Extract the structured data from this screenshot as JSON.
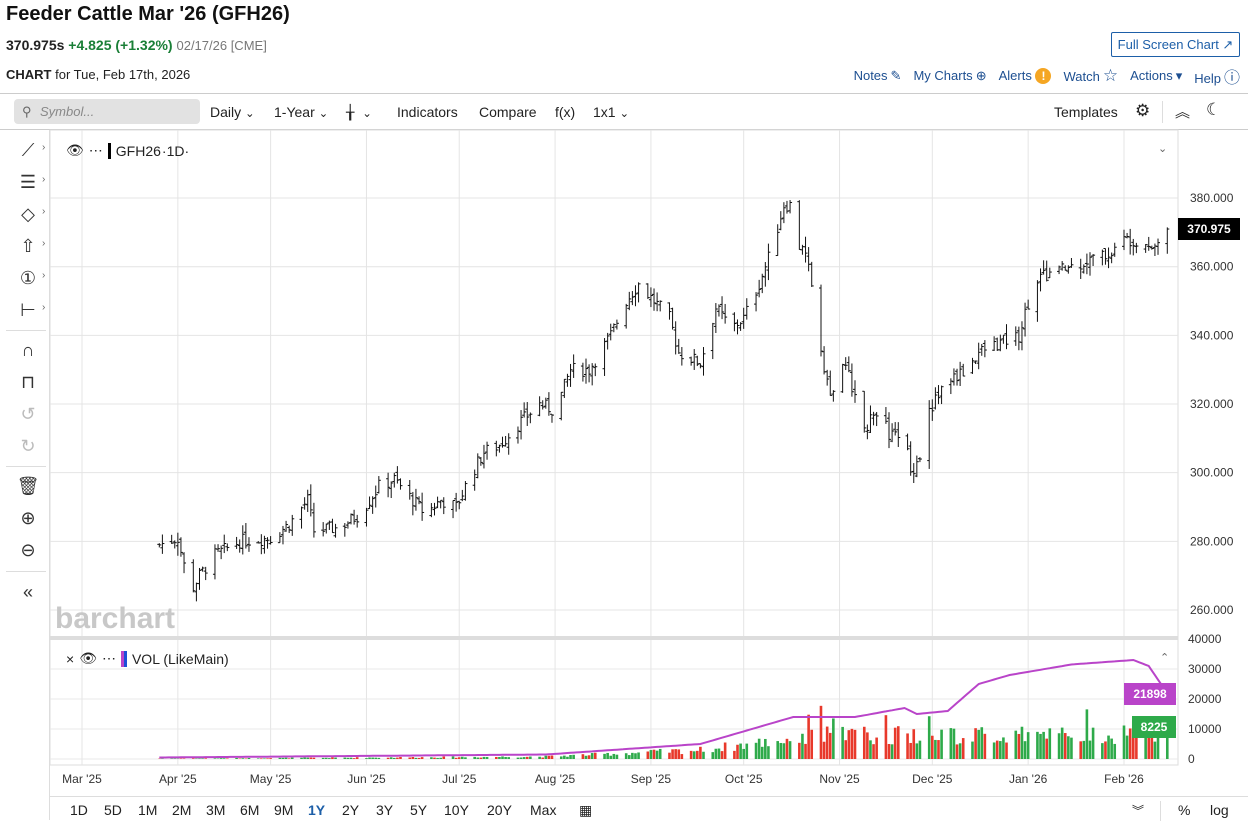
{
  "header": {
    "title": "Feeder Cattle Mar '26 (GFH26)",
    "last": "370.975s",
    "change": "+4.825 (+1.32%)",
    "date": "02/17/26 [CME]",
    "fullscreen": "Full Screen Chart ↗",
    "chart_label": "CHART",
    "chart_for": "for Tue, Feb 17th, 2026"
  },
  "links": {
    "notes": "Notes",
    "mycharts": "My Charts",
    "alerts": "Alerts",
    "watch": "Watch",
    "actions": "Actions",
    "help": "Help"
  },
  "toolbar": {
    "search_placeholder": "Symbol...",
    "interval": "Daily",
    "range": "1-Year",
    "indicators": "Indicators",
    "compare": "Compare",
    "fx": "f(x)",
    "layout": "1x1",
    "templates": "Templates"
  },
  "legend": {
    "symbol": "GFH26",
    "period": "·1D·",
    "vol": "VOL (LikeMain)"
  },
  "watermark": "barchart",
  "bottom": {
    "ranges": [
      "1D",
      "5D",
      "1M",
      "2M",
      "3M",
      "6M",
      "9M",
      "1Y",
      "2Y",
      "3Y",
      "5Y",
      "10Y",
      "20Y",
      "Max"
    ],
    "active": "1Y",
    "pct": "%",
    "log": "log"
  },
  "colors": {
    "up": "#2eaa4a",
    "down": "#e8392b",
    "ma": "#b944c9",
    "link": "#1d4f91"
  },
  "chart_data": {
    "type": "ohlc",
    "x_unit": "days since 2025-03-01",
    "xticks": [
      {
        "label": "Mar '25",
        "day": 0
      },
      {
        "label": "Apr '25",
        "day": 31
      },
      {
        "label": "May '25",
        "day": 61
      },
      {
        "label": "Jun '25",
        "day": 92
      },
      {
        "label": "Jul '25",
        "day": 122
      },
      {
        "label": "Aug '25",
        "day": 153
      },
      {
        "label": "Sep '25",
        "day": 184
      },
      {
        "label": "Oct '25",
        "day": 214
      },
      {
        "label": "Nov '25",
        "day": 245
      },
      {
        "label": "Dec '25",
        "day": 275
      },
      {
        "label": "Jan '26",
        "day": 306
      },
      {
        "label": "Feb '26",
        "day": 337
      }
    ],
    "price_ticks": [
      "260.000",
      "280.000",
      "300.000",
      "320.000",
      "340.000",
      "360.000",
      "380.000"
    ],
    "ylim": [
      254,
      393
    ],
    "last_price": "370.975",
    "close_keypoints": [
      [
        25,
        279
      ],
      [
        31,
        281
      ],
      [
        35,
        265
      ],
      [
        38,
        270
      ],
      [
        43,
        276
      ],
      [
        51,
        280
      ],
      [
        61,
        281
      ],
      [
        67,
        285
      ],
      [
        73,
        292
      ],
      [
        75,
        283
      ],
      [
        83,
        284
      ],
      [
        90,
        288
      ],
      [
        96,
        296
      ],
      [
        101,
        298
      ],
      [
        106,
        293
      ],
      [
        111,
        288
      ],
      [
        116,
        292
      ],
      [
        121,
        290
      ],
      [
        125,
        298
      ],
      [
        130,
        306
      ],
      [
        135,
        308
      ],
      [
        142,
        315
      ],
      [
        148,
        320
      ],
      [
        153,
        318
      ],
      [
        158,
        330
      ],
      [
        164,
        330
      ],
      [
        171,
        340
      ],
      [
        176,
        350
      ],
      [
        180,
        355
      ],
      [
        185,
        350
      ],
      [
        190,
        345
      ],
      [
        193,
        335
      ],
      [
        200,
        332
      ],
      [
        205,
        348
      ],
      [
        210,
        342
      ],
      [
        214,
        345
      ],
      [
        219,
        355
      ],
      [
        223,
        365
      ],
      [
        227,
        378
      ],
      [
        230,
        378
      ],
      [
        232,
        366
      ],
      [
        235,
        360
      ],
      [
        238,
        345
      ],
      [
        239,
        336
      ],
      [
        242,
        322
      ],
      [
        245,
        330
      ],
      [
        248,
        330
      ],
      [
        252,
        312
      ],
      [
        255,
        315
      ],
      [
        258,
        320
      ],
      [
        261,
        310
      ],
      [
        266,
        312
      ],
      [
        268,
        300
      ],
      [
        271,
        305
      ],
      [
        274,
        318
      ],
      [
        279,
        326
      ],
      [
        286,
        330
      ],
      [
        290,
        335
      ],
      [
        297,
        338
      ],
      [
        303,
        340
      ],
      [
        308,
        356
      ],
      [
        313,
        358
      ],
      [
        320,
        360
      ],
      [
        326,
        362
      ],
      [
        333,
        364
      ],
      [
        337,
        368
      ],
      [
        342,
        368
      ],
      [
        347,
        366
      ],
      [
        351,
        371
      ]
    ],
    "volume": {
      "ticks": [
        "0",
        "10000",
        "20000",
        "30000",
        "40000"
      ],
      "ylim": [
        0,
        42000
      ],
      "last_volume": "8225",
      "last_ma": "21898",
      "bar_keypoints": [
        [
          25,
          100
        ],
        [
          150,
          800
        ],
        [
          200,
          3000
        ],
        [
          240,
          8000
        ],
        [
          290,
          8000
        ],
        [
          351,
          8225
        ]
      ],
      "ma_keypoints": [
        [
          25,
          500
        ],
        [
          150,
          1500
        ],
        [
          200,
          5000
        ],
        [
          230,
          14000
        ],
        [
          250,
          14000
        ],
        [
          266,
          17000
        ],
        [
          270,
          15000
        ],
        [
          280,
          16000
        ],
        [
          290,
          25000
        ],
        [
          300,
          28000
        ],
        [
          320,
          31500
        ],
        [
          340,
          33000
        ],
        [
          345,
          31000
        ],
        [
          351,
          21898
        ]
      ]
    }
  }
}
